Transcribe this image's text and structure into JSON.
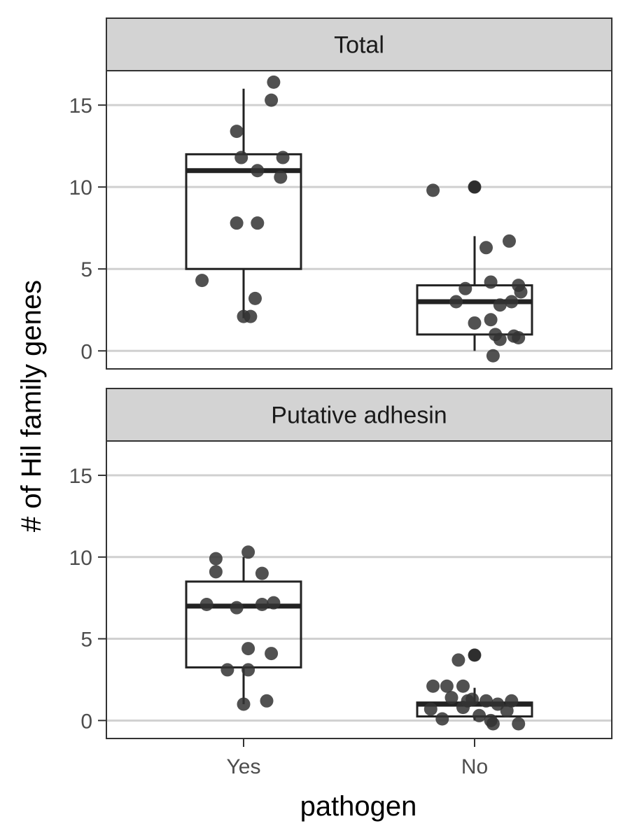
{
  "chart_data": {
    "type": "boxplot",
    "xlabel": "pathogen",
    "ylabel": "# of Hil family genes",
    "categories": [
      "Yes",
      "No"
    ],
    "ylim": [
      -1.1,
      17.1
    ],
    "yticks": [
      0,
      5,
      10,
      15
    ],
    "grid": "horizontal major",
    "colors": {
      "point": "#333333",
      "box_line": "#222222",
      "grid": "#d0d0d0",
      "strip_fill": "#d3d3d3",
      "panel_border": "#333333"
    },
    "panels": [
      {
        "strip_label": "Total",
        "boxes": [
          {
            "category": "Yes",
            "lower_whisker": 2,
            "q1": 5,
            "median": 11,
            "q3": 12,
            "upper_whisker": 16
          },
          {
            "category": "No",
            "lower_whisker": 0,
            "q1": 1,
            "median": 3,
            "q3": 4,
            "upper_whisker": 7
          }
        ],
        "outliers": [
          {
            "category": "No",
            "y": 10
          }
        ],
        "points": [
          {
            "x": -0.18,
            "y": 4.3
          },
          {
            "x": 0.0,
            "y": 2.1
          },
          {
            "x": 0.03,
            "y": 2.1
          },
          {
            "x": 0.05,
            "y": 3.2
          },
          {
            "x": -0.03,
            "y": 7.8
          },
          {
            "x": 0.06,
            "y": 7.8
          },
          {
            "x": -0.01,
            "y": 11.8
          },
          {
            "x": 0.06,
            "y": 11.0
          },
          {
            "x": 0.17,
            "y": 11.8
          },
          {
            "x": 0.16,
            "y": 10.6
          },
          {
            "x": -0.03,
            "y": 13.4
          },
          {
            "x": 0.12,
            "y": 15.3
          },
          {
            "x": 0.13,
            "y": 16.4
          },
          {
            "x": 1.82,
            "y": 9.8
          },
          {
            "x": 2.0,
            "y": 10.0
          },
          {
            "x": 2.05,
            "y": 6.3
          },
          {
            "x": 2.15,
            "y": 6.7
          },
          {
            "x": 1.96,
            "y": 3.8
          },
          {
            "x": 2.07,
            "y": 4.2
          },
          {
            "x": 2.19,
            "y": 4.0
          },
          {
            "x": 2.2,
            "y": 3.6
          },
          {
            "x": 1.92,
            "y": 3.0
          },
          {
            "x": 2.11,
            "y": 2.8
          },
          {
            "x": 2.16,
            "y": 3.0
          },
          {
            "x": 2.07,
            "y": 1.9
          },
          {
            "x": 2.0,
            "y": 1.7
          },
          {
            "x": 2.09,
            "y": 1.0
          },
          {
            "x": 2.11,
            "y": 0.7
          },
          {
            "x": 2.17,
            "y": 0.9
          },
          {
            "x": 2.19,
            "y": 0.8
          },
          {
            "x": 2.08,
            "y": -0.3
          }
        ]
      },
      {
        "strip_label": "Putative adhesin",
        "boxes": [
          {
            "category": "Yes",
            "lower_whisker": 1,
            "q1": 3.25,
            "median": 7,
            "q3": 8.5,
            "upper_whisker": 10
          },
          {
            "category": "No",
            "lower_whisker": 0,
            "q1": 0.25,
            "median": 1,
            "q3": 1.1,
            "upper_whisker": 2
          }
        ],
        "outliers": [
          {
            "category": "No",
            "y": 4
          }
        ],
        "points": [
          {
            "x": -0.12,
            "y": 9.9
          },
          {
            "x": 0.02,
            "y": 10.3
          },
          {
            "x": -0.12,
            "y": 9.1
          },
          {
            "x": 0.08,
            "y": 9.0
          },
          {
            "x": -0.16,
            "y": 7.1
          },
          {
            "x": -0.03,
            "y": 6.9
          },
          {
            "x": 0.08,
            "y": 7.1
          },
          {
            "x": 0.13,
            "y": 7.2
          },
          {
            "x": 0.02,
            "y": 4.4
          },
          {
            "x": 0.12,
            "y": 4.1
          },
          {
            "x": -0.07,
            "y": 3.1
          },
          {
            "x": 0.02,
            "y": 3.1
          },
          {
            "x": 0.1,
            "y": 1.2
          },
          {
            "x": 0.0,
            "y": 1.0
          },
          {
            "x": 1.93,
            "y": 3.7
          },
          {
            "x": 2.0,
            "y": 4.0
          },
          {
            "x": 1.82,
            "y": 2.1
          },
          {
            "x": 1.88,
            "y": 2.1
          },
          {
            "x": 1.95,
            "y": 2.1
          },
          {
            "x": 1.9,
            "y": 1.4
          },
          {
            "x": 1.97,
            "y": 1.2
          },
          {
            "x": 1.99,
            "y": 1.3
          },
          {
            "x": 1.95,
            "y": 0.8
          },
          {
            "x": 2.05,
            "y": 1.2
          },
          {
            "x": 2.1,
            "y": 1.0
          },
          {
            "x": 2.16,
            "y": 1.2
          },
          {
            "x": 1.81,
            "y": 0.7
          },
          {
            "x": 1.86,
            "y": 0.1
          },
          {
            "x": 2.02,
            "y": 0.3
          },
          {
            "x": 2.14,
            "y": 0.6
          },
          {
            "x": 2.07,
            "y": 0.0
          },
          {
            "x": 2.08,
            "y": -0.2
          },
          {
            "x": 2.19,
            "y": -0.2
          }
        ]
      }
    ]
  }
}
